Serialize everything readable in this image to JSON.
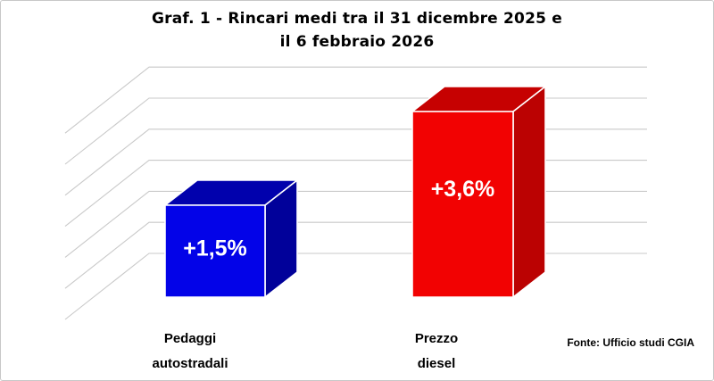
{
  "header": {
    "title_lines": [
      "Graf. 1 - Rincari medi tra il 31 dicembre 2025 e",
      "il 6 febbraio 2026"
    ]
  },
  "chart_data": {
    "type": "bar",
    "style": "3d-column",
    "title": "Graf. 1 - Rincari medi tra il 31 dicembre 2025 e il 6 febbraio 2026",
    "categories": [
      "Pedaggi autostradali",
      "Prezzo diesel"
    ],
    "category_label_lines": [
      [
        "Pedaggi",
        "autostradali"
      ],
      [
        "Prezzo",
        "diesel"
      ]
    ],
    "values": [
      1.5,
      3.6
    ],
    "data_labels": [
      "+1,5%",
      "+3,6%"
    ],
    "unit": "percent",
    "source": "Fonte: Ufficio studi CGIA",
    "legend": "none",
    "axis": {
      "value_labels_visible": false,
      "gridline_count": 7,
      "implied_ylim": [
        0,
        4
      ],
      "implied_step": 0.5
    },
    "colors": {
      "gridline": "#c9c9c9",
      "data_label_text": "#ffffff",
      "bars": [
        {
          "front": "#0303e8",
          "top": "#0101ad",
          "side": "#01019a"
        },
        {
          "front": "#f20202",
          "top": "#c60101",
          "side": "#bb0202"
        }
      ]
    }
  }
}
